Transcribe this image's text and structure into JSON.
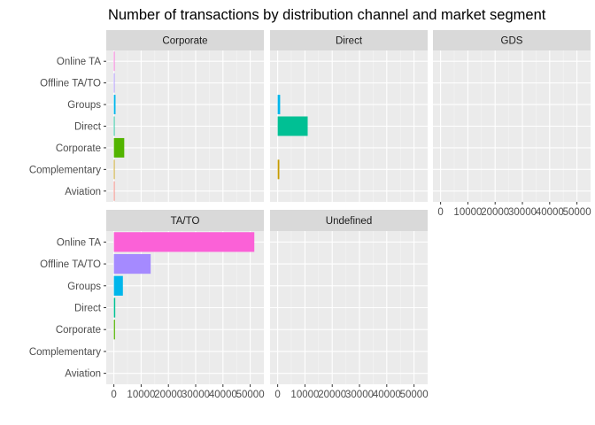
{
  "chart_data": {
    "type": "bar",
    "orientation": "horizontal",
    "title": "Number of transactions by distribution channel and market segment",
    "facet_by": "distribution channel",
    "categories": [
      "Aviation",
      "Complementary",
      "Corporate",
      "Direct",
      "Groups",
      "Offline TA/TO",
      "Online TA"
    ],
    "x_ticks": [
      0,
      10000,
      20000,
      30000,
      40000,
      50000
    ],
    "x_tick_labels": [
      "0",
      "10000",
      "20000",
      "30000",
      "40000",
      "50000"
    ],
    "xlim": [
      -2800,
      55000
    ],
    "grid": true,
    "legend": "none",
    "colors": {
      "Aviation": "#F8766D",
      "Complementary": "#C49A00",
      "Corporate": "#53B400",
      "Direct": "#00C094",
      "Groups": "#00B6EB",
      "Offline TA/TO": "#A58AFF",
      "Online TA": "#FB61D7"
    },
    "facets": [
      {
        "name": "Corporate",
        "values": [
          230,
          80,
          3800,
          100,
          600,
          200,
          150
        ]
      },
      {
        "name": "Direct",
        "values": [
          0,
          600,
          0,
          11000,
          900,
          0,
          0
        ]
      },
      {
        "name": "GDS",
        "values": [
          0,
          0,
          0,
          0,
          0,
          0,
          0
        ]
      },
      {
        "name": "TA/TO",
        "values": [
          0,
          0,
          400,
          500,
          3300,
          13500,
          51500
        ]
      },
      {
        "name": "Undefined",
        "values": [
          0,
          0,
          0,
          0,
          0,
          0,
          0
        ]
      }
    ]
  }
}
